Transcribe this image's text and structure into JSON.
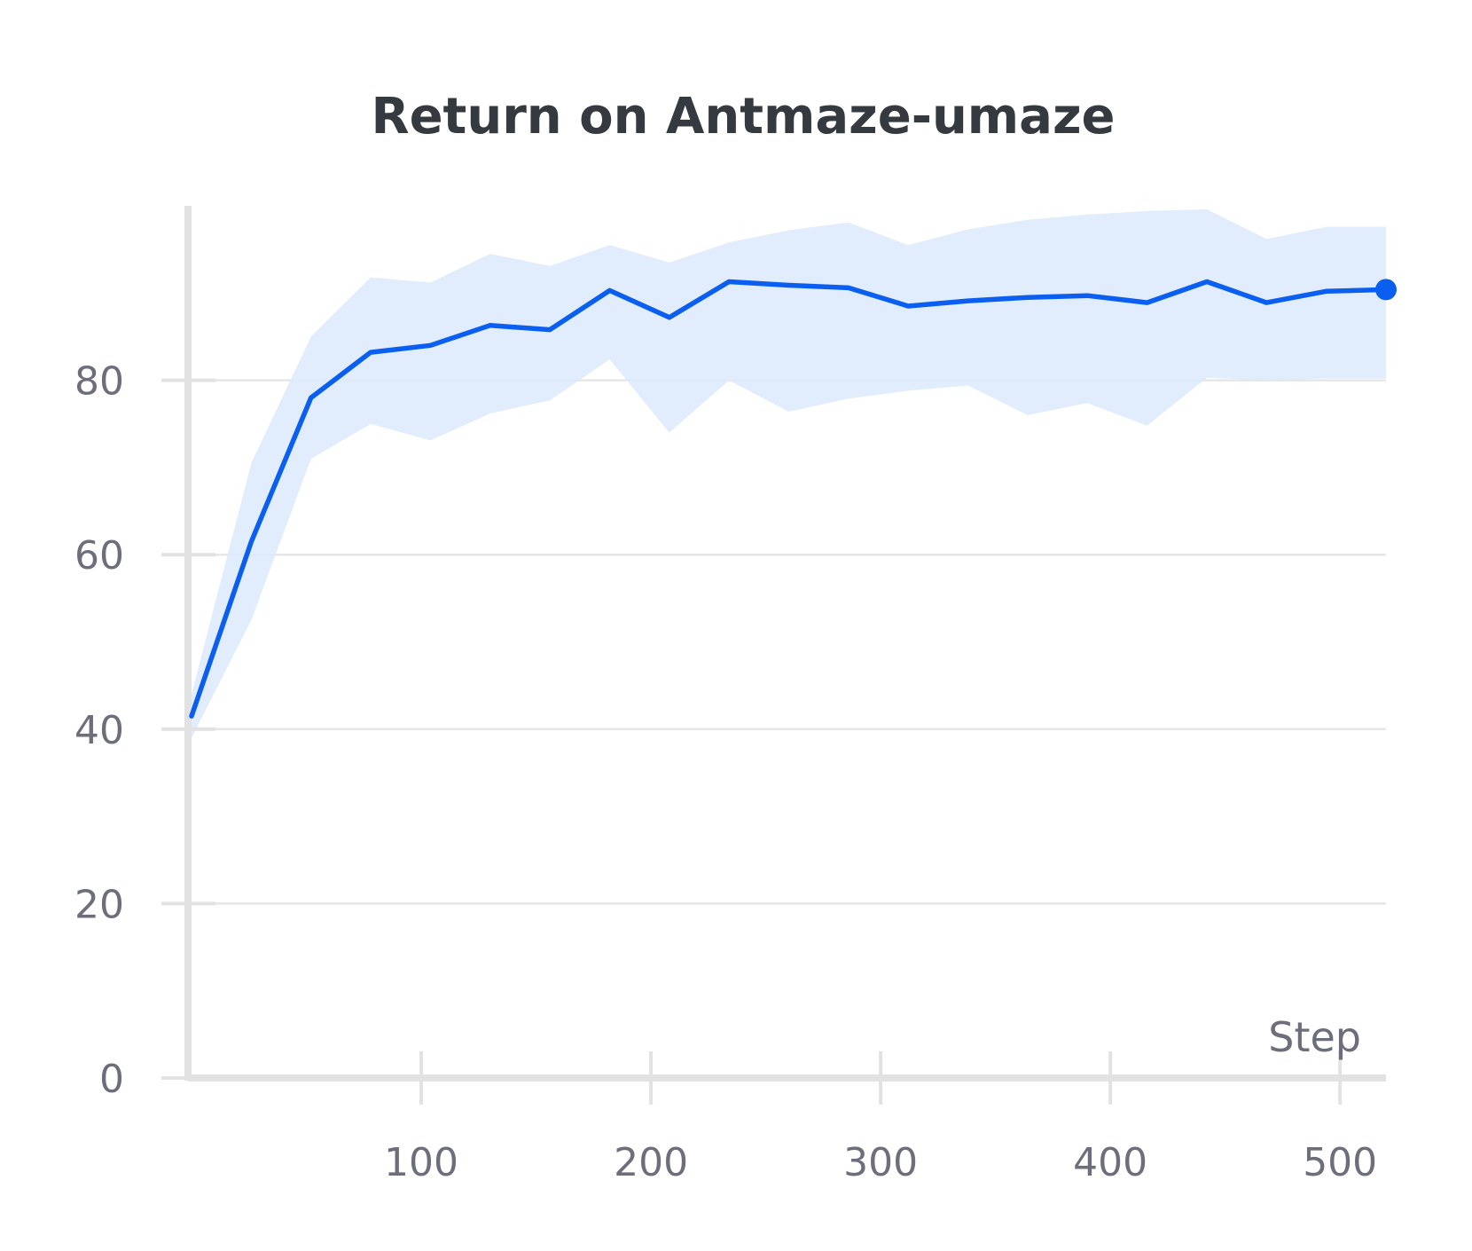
{
  "chart_data": {
    "type": "line",
    "title": "Return on Antmaze-umaze",
    "xlabel": "Step",
    "ylabel": "",
    "xlim": [
      0,
      520
    ],
    "ylim": [
      0,
      100
    ],
    "xticks": [
      100,
      200,
      300,
      400,
      500
    ],
    "yticks": [
      0,
      20,
      40,
      60,
      80
    ],
    "grid": true,
    "legend": "none",
    "colors": {
      "line": "#0a5ff0",
      "band": "#dce9fb",
      "grid": "#e6e6e6",
      "axis": "#e2e2e2",
      "text": "#6c6f7b",
      "title": "#343a40"
    },
    "series": [
      {
        "x": [
          0,
          26,
          52,
          78,
          104,
          130,
          156,
          182,
          208,
          234,
          260,
          286,
          312,
          338,
          364,
          390,
          416,
          442,
          468,
          494,
          520
        ],
        "values": [
          41.5,
          61.5,
          78,
          83.2,
          84,
          86.3,
          85.8,
          90.3,
          87.2,
          91.3,
          90.9,
          90.6,
          88.5,
          89.1,
          89.5,
          89.7,
          88.9,
          91.3,
          88.9,
          90.2,
          90.4
        ],
        "upper": [
          44,
          70.5,
          85,
          91.8,
          91.2,
          94.5,
          93.1,
          95.5,
          93.5,
          95.8,
          97.2,
          98.1,
          95.5,
          97.3,
          98.4,
          99.0,
          99.4,
          99.6,
          96.2,
          97.6,
          97.6
        ],
        "lower": [
          39,
          52.5,
          71,
          75.0,
          73.1,
          76.2,
          77.7,
          82.4,
          74.0,
          80.0,
          76.4,
          77.9,
          78.8,
          79.4,
          76.0,
          77.4,
          74.8,
          80.3,
          80.0,
          80.2,
          80.2
        ]
      }
    ]
  }
}
